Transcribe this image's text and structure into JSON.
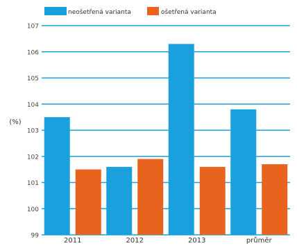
{
  "chart_data": {
    "type": "bar",
    "categories": [
      "2011",
      "2012",
      "2013",
      "průměr"
    ],
    "series": [
      {
        "name": "neošetřená varianta",
        "color": "#1aa0dc",
        "values": [
          103.5,
          101.6,
          106.3,
          103.8
        ]
      },
      {
        "name": "ošetřená varianta",
        "color": "#e8641e",
        "values": [
          101.5,
          101.9,
          101.6,
          101.7
        ]
      }
    ],
    "xlabel": "",
    "ylabel": "(%)",
    "ylim": [
      99,
      107
    ],
    "yticks": [
      "99",
      "100",
      "101",
      "102",
      "103",
      "104",
      "105",
      "106",
      "107"
    ],
    "grid": true,
    "grid_color": "#1aa0dc",
    "legend_position": "top-left"
  }
}
